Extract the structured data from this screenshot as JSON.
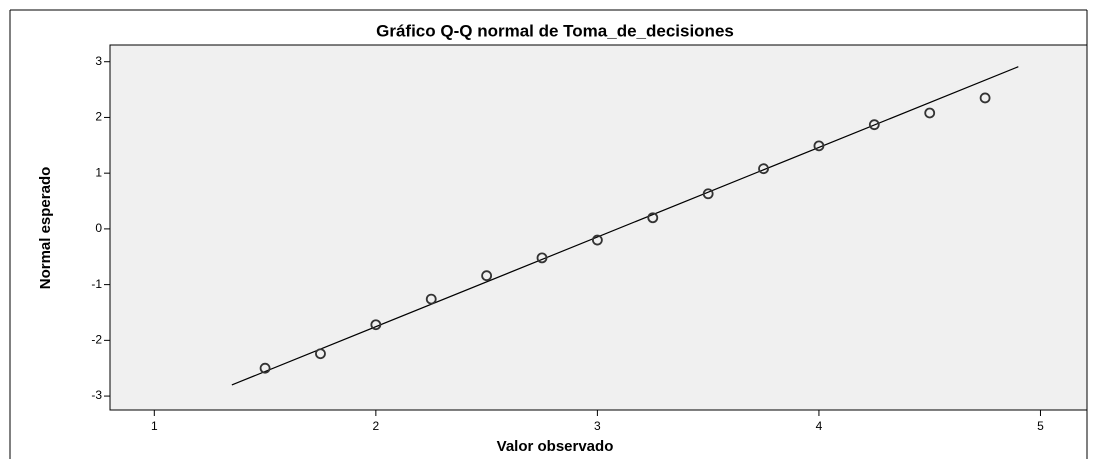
{
  "chart_data": {
    "type": "scatter",
    "title": "Gráfico Q-Q normal de Toma_de_decisiones",
    "x_label": "Valor observado",
    "y_label": "Normal esperado",
    "series": [
      {
        "name": null,
        "color": "#333333",
        "x": [
          1.5,
          1.75,
          2,
          2.25,
          2.5,
          2.75,
          3,
          3.25,
          3.5,
          3.75,
          4,
          4.25,
          4.5,
          4.75
        ],
        "values": [
          -2.5,
          -2.24,
          -1.72,
          -1.26,
          -0.84,
          -0.52,
          -0.2,
          0.2,
          0.63,
          1.08,
          1.49,
          1.87,
          2.08,
          2.35
        ]
      }
    ],
    "reference_line": {
      "x": [
        1.35,
        4.9
      ],
      "y": [
        -2.8,
        2.91
      ],
      "color": "#000000"
    },
    "xlim": [
      0.8,
      5.21
    ],
    "xticks": [
      1,
      2,
      3,
      4,
      5
    ],
    "ylim": [
      -3.25,
      3.3
    ],
    "yticks": [
      -3,
      -2,
      -1,
      0,
      1,
      2,
      3
    ],
    "background": "#f0f0f0"
  }
}
